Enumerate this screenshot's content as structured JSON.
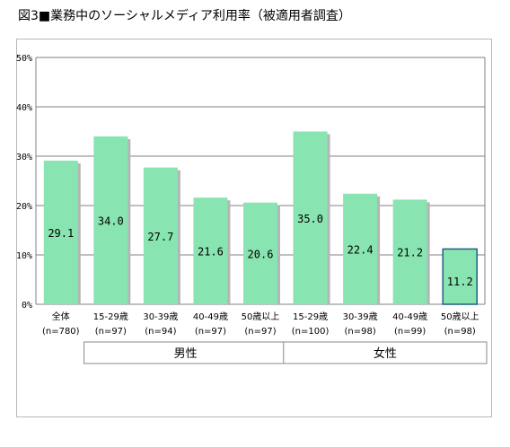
{
  "title": "図3■業務中のソーシャルメディア利用率（被適用者調査）",
  "chart_data": {
    "type": "bar",
    "categories": [
      {
        "label": "全体",
        "n": "(n=780)"
      },
      {
        "label": "15-29歳",
        "n": "(n=97)"
      },
      {
        "label": "30-39歳",
        "n": "(n=94)"
      },
      {
        "label": "40-49歳",
        "n": "(n=97)"
      },
      {
        "label": "50歳以上",
        "n": "(n=97)"
      },
      {
        "label": "15-29歳",
        "n": "(n=100)"
      },
      {
        "label": "30-39歳",
        "n": "(n=98)"
      },
      {
        "label": "40-49歳",
        "n": "(n=99)"
      },
      {
        "label": "50歳以上",
        "n": "(n=98)"
      }
    ],
    "values": [
      29.1,
      34.0,
      27.7,
      21.6,
      20.6,
      35.0,
      22.4,
      21.2,
      11.2
    ],
    "value_labels": [
      "29.1",
      "34.0",
      "27.7",
      "21.6",
      "20.6",
      "35.0",
      "22.4",
      "21.2",
      "11.2"
    ],
    "ylim": [
      0,
      50
    ],
    "yticks": [
      {
        "value": 0,
        "label": "0%"
      },
      {
        "value": 10,
        "label": "10%"
      },
      {
        "value": 20,
        "label": "20%"
      },
      {
        "value": 30,
        "label": "30%"
      },
      {
        "value": 40,
        "label": "40%"
      },
      {
        "value": 50,
        "label": "50%"
      }
    ],
    "groups": [
      {
        "label": "男性",
        "first": 1,
        "last": 4
      },
      {
        "label": "女性",
        "first": 5,
        "last": 8
      }
    ],
    "grid": true,
    "colors": {
      "bar_fill": "#88e4b0",
      "bar_shadow": "#b5b5b5",
      "highlight_fill": "#88e4b0",
      "highlight_border": "#1f5f86",
      "grid": "#808080",
      "axis": "#808080",
      "group_border": "#8a8a8a"
    },
    "highlight_index": 8
  }
}
